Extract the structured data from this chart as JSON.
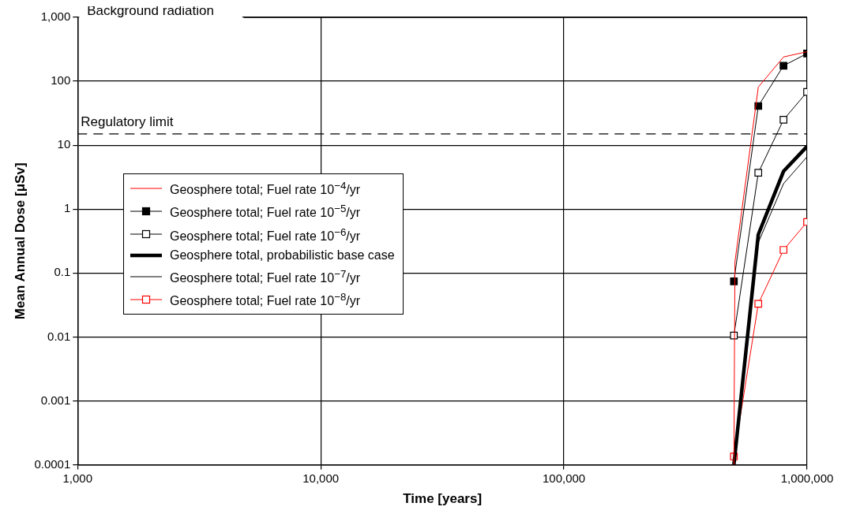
{
  "chart_data": {
    "type": "line",
    "xlabel": "Time [years]",
    "ylabel": "Mean Annual Dose [μSv]",
    "log": "xy",
    "grid": true,
    "legend": "left",
    "xlim": [
      1000,
      1000000
    ],
    "xticks": [
      {
        "value": 1000,
        "label": "1,000"
      },
      {
        "value": 10000,
        "label": "10,000"
      },
      {
        "value": 100000,
        "label": "100,000"
      },
      {
        "value": 1000000,
        "label": "1,000,000"
      }
    ],
    "ylim": [
      0.0001,
      1000
    ],
    "yticks": [
      0.0001,
      0.001,
      0.01,
      0.1,
      1,
      10,
      100,
      {
        "value": 1000,
        "label": "1,000"
      }
    ],
    "ref_lines": [
      {
        "axis": "y",
        "value": 1000,
        "label": "Background radiation",
        "color": "#000000",
        "line_style": "solid"
      },
      {
        "axis": "y",
        "value": 15,
        "label": "Regulatory limit",
        "color": "#000000",
        "line_style": "dashed"
      }
    ],
    "series": [
      {
        "name": "Geosphere total; Fuel rate 10$^{−4}$/yr",
        "color": "#ff0000",
        "marker": "none",
        "x": [
          500000,
          505000,
          630000,
          800000,
          1000000
        ],
        "values": [
          0.0001,
          0.15,
          81,
          240,
          290
        ]
      },
      {
        "name": "Geosphere total; Fuel rate 10$^{−5}$/yr",
        "color": "#000000",
        "marker": "square",
        "x": [
          500000,
          630000,
          800000,
          1000000
        ],
        "values": [
          0.074,
          41,
          175,
          272
        ]
      },
      {
        "name": "Geosphere total; Fuel rate 10$^{−6}$/yr",
        "color": "#000000",
        "marker": "square",
        "x": [
          500000,
          630000,
          800000,
          1000000
        ],
        "values": [
          0.0105,
          3.7,
          25,
          68
        ]
      },
      {
        "name": "Geosphere total, probabilistic base case",
        "color": "#000000",
        "marker": "none",
        "x": [
          500000,
          630000,
          800000,
          1000000
        ],
        "values": [
          0.0001,
          0.4,
          3.9,
          9.6
        ]
      },
      {
        "name": "Geosphere total; Fuel rate 10$^{−7}$/yr",
        "color": "#000000",
        "marker": "none",
        "x": [
          500000,
          630000,
          800000,
          1000000
        ],
        "values": [
          0.0001,
          0.3,
          2.5,
          6.6
        ]
      },
      {
        "name": "Geosphere total; Fuel rate 10$^{−8}$/yr",
        "color": "#ff0000",
        "marker": "square",
        "x": [
          500000,
          630000,
          800000,
          1000000
        ],
        "values": [
          0.000135,
          0.033,
          0.23,
          0.63
        ]
      }
    ]
  }
}
